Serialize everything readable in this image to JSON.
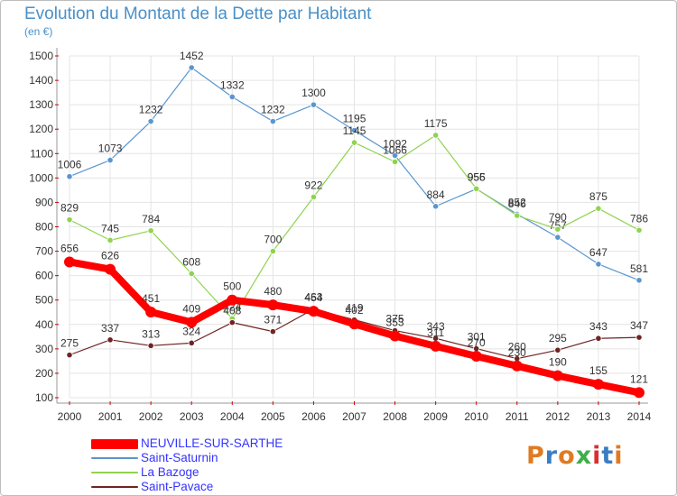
{
  "page": {
    "title": "Evolution du Montant de la Dette par Habitant",
    "unit": "(en €)",
    "logo": "Proxiti"
  },
  "colors": {
    "title": "#4a90c8",
    "legend_text": "#3333ff",
    "grid": "#e4e4e4",
    "axis": "#999999",
    "axis_tick_marks": "#cc0000",
    "logo_letters": [
      "#e07b22",
      "#3a7ec2",
      "#e07b22",
      "#3fae49",
      "#d93030",
      "#3a7ec2",
      "#e07b22"
    ]
  },
  "chart_data": {
    "type": "line",
    "title": "Evolution du Montant de la Dette par Habitant",
    "ylabel": "(en €)",
    "xlabel": "",
    "x": [
      "2000",
      "2001",
      "2002",
      "2003",
      "2004",
      "2005",
      "2006",
      "2007",
      "2008",
      "2009",
      "2010",
      "2011",
      "2012",
      "2013",
      "2014"
    ],
    "ylim": [
      100,
      1500
    ],
    "yticks": [
      100,
      200,
      300,
      400,
      500,
      600,
      700,
      800,
      900,
      1000,
      1100,
      1200,
      1300,
      1400,
      1500
    ],
    "grid": true,
    "legend_position": "bottom-left",
    "series": [
      {
        "name": "Saint-Saturnin",
        "color": "#5a96cf",
        "values": [
          1006,
          1073,
          1232,
          1452,
          1332,
          1232,
          1300,
          1195,
          1092,
          884,
          955,
          852,
          757,
          647,
          581
        ]
      },
      {
        "name": "La Bazoge",
        "color": "#8fd34f",
        "values": [
          829,
          745,
          784,
          608,
          424,
          700,
          922,
          1145,
          1066,
          1175,
          956,
          846,
          790,
          875,
          786
        ]
      },
      {
        "name": "Saint-Pavace",
        "color": "#6e2424",
        "values": [
          275,
          337,
          313,
          324,
          408,
          371,
          463,
          419,
          375,
          343,
          301,
          260,
          295,
          343,
          347
        ]
      },
      {
        "name": "NEUVILLE-SUR-SARTHE",
        "color": "#ff0000",
        "values": [
          656,
          626,
          451,
          409,
          500,
          480,
          454,
          402,
          353,
          311,
          270,
          230,
          190,
          155,
          121
        ],
        "highlight": true
      }
    ],
    "legend_order": [
      "NEUVILLE-SUR-SARTHE",
      "Saint-Saturnin",
      "La Bazoge",
      "Saint-Pavace"
    ]
  }
}
